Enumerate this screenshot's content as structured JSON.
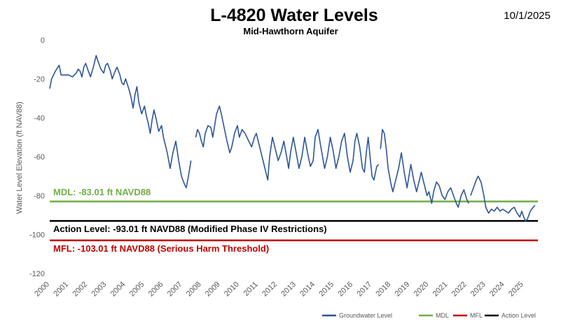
{
  "chart_data": {
    "type": "line",
    "title": "L-4820 Water Levels",
    "subtitle": "Mid-Hawthorn Aquifer",
    "date": "10/1/2025",
    "ylabel": "Water Level Elevation (ft NAV88)",
    "xlabel": "",
    "ylim": [
      -120,
      0
    ],
    "yticks": [
      0,
      -20,
      -40,
      -60,
      -80,
      -100,
      -120
    ],
    "xlim": [
      2000,
      2025.75
    ],
    "xticks": [
      "2000",
      "2001",
      "2002",
      "2003",
      "2004",
      "2005",
      "2006",
      "2007",
      "2008",
      "2009",
      "2010",
      "2011",
      "2012",
      "2013",
      "2014",
      "2015",
      "2016",
      "2017",
      "2018",
      "2019",
      "2020",
      "2021",
      "2022",
      "2023",
      "2024",
      "2025"
    ],
    "grid": false,
    "legend_position": "bottom-right",
    "reference_lines": [
      {
        "name": "MDL",
        "value": -83.01,
        "color": "#70ad47",
        "label": "MDL: -83.01 ft NAVD88"
      },
      {
        "name": "Action Level",
        "value": -93.01,
        "color": "#000000",
        "label": "Action Level: -93.01 ft NAVD88 (Modified Phase IV Restrictions)"
      },
      {
        "name": "MFL",
        "value": -103.01,
        "color": "#c00000",
        "label": "MFL: -103.01 ft NAVD88 (Serious Harm Threshold)"
      }
    ],
    "series": [
      {
        "name": "Groundwater Level",
        "color": "#2f5597",
        "segments": [
          [
            [
              2000.0,
              -25
            ],
            [
              2000.1,
              -20
            ],
            [
              2000.3,
              -16
            ],
            [
              2000.5,
              -13
            ],
            [
              2000.6,
              -18
            ],
            [
              2000.8,
              -18
            ],
            [
              2001.0,
              -18
            ],
            [
              2001.2,
              -19
            ],
            [
              2001.4,
              -17
            ],
            [
              2001.5,
              -15
            ],
            [
              2001.6,
              -16
            ],
            [
              2001.7,
              -19
            ],
            [
              2001.8,
              -14
            ],
            [
              2001.9,
              -12
            ],
            [
              2002.0,
              -15
            ],
            [
              2002.15,
              -19
            ],
            [
              2002.3,
              -14
            ],
            [
              2002.45,
              -8
            ],
            [
              2002.55,
              -11
            ],
            [
              2002.7,
              -15
            ],
            [
              2002.85,
              -17
            ],
            [
              2002.95,
              -13
            ],
            [
              2003.05,
              -12
            ],
            [
              2003.2,
              -16
            ],
            [
              2003.3,
              -20
            ],
            [
              2003.45,
              -16
            ],
            [
              2003.55,
              -14
            ],
            [
              2003.7,
              -18
            ],
            [
              2003.8,
              -22
            ],
            [
              2003.9,
              -23
            ],
            [
              2004.0,
              -20
            ],
            [
              2004.1,
              -23
            ],
            [
              2004.2,
              -26
            ],
            [
              2004.3,
              -30
            ],
            [
              2004.4,
              -35
            ],
            [
              2004.5,
              -28
            ],
            [
              2004.6,
              -24
            ],
            [
              2004.7,
              -32
            ],
            [
              2004.85,
              -38
            ],
            [
              2005.0,
              -34
            ],
            [
              2005.1,
              -39
            ],
            [
              2005.2,
              -43
            ],
            [
              2005.3,
              -48
            ],
            [
              2005.4,
              -41
            ],
            [
              2005.5,
              -36
            ],
            [
              2005.6,
              -40
            ],
            [
              2005.75,
              -47
            ],
            [
              2005.9,
              -44
            ],
            [
              2006.0,
              -50
            ],
            [
              2006.2,
              -58
            ],
            [
              2006.35,
              -66
            ],
            [
              2006.5,
              -58
            ],
            [
              2006.65,
              -52
            ],
            [
              2006.8,
              -62
            ],
            [
              2006.95,
              -70
            ],
            [
              2007.1,
              -74
            ],
            [
              2007.2,
              -76
            ],
            [
              2007.3,
              -71
            ],
            [
              2007.45,
              -62
            ]
          ],
          [
            [
              2007.7,
              -50
            ],
            [
              2007.8,
              -46
            ],
            [
              2007.9,
              -48
            ],
            [
              2008.0,
              -52
            ],
            [
              2008.1,
              -55
            ],
            [
              2008.2,
              -48
            ],
            [
              2008.35,
              -44
            ],
            [
              2008.5,
              -45
            ],
            [
              2008.6,
              -50
            ],
            [
              2008.8,
              -38
            ],
            [
              2008.95,
              -34
            ],
            [
              2009.05,
              -38
            ],
            [
              2009.2,
              -45
            ],
            [
              2009.35,
              -52
            ],
            [
              2009.5,
              -58
            ],
            [
              2009.6,
              -55
            ],
            [
              2009.75,
              -48
            ],
            [
              2009.9,
              -44
            ],
            [
              2010.0,
              -50
            ],
            [
              2010.15,
              -46
            ],
            [
              2010.3,
              -48
            ],
            [
              2010.5,
              -52
            ],
            [
              2010.65,
              -55
            ],
            [
              2010.8,
              -50
            ],
            [
              2010.9,
              -48
            ],
            [
              2011.0,
              -52
            ],
            [
              2011.2,
              -60
            ],
            [
              2011.4,
              -68
            ],
            [
              2011.5,
              -72
            ],
            [
              2011.6,
              -60
            ],
            [
              2011.75,
              -50
            ],
            [
              2011.9,
              -56
            ],
            [
              2012.05,
              -62
            ],
            [
              2012.2,
              -58
            ],
            [
              2012.35,
              -52
            ],
            [
              2012.5,
              -60
            ],
            [
              2012.6,
              -66
            ],
            [
              2012.7,
              -58
            ],
            [
              2012.85,
              -50
            ],
            [
              2013.0,
              -58
            ],
            [
              2013.15,
              -66
            ],
            [
              2013.3,
              -60
            ],
            [
              2013.45,
              -50
            ],
            [
              2013.6,
              -58
            ],
            [
              2013.75,
              -65
            ],
            [
              2013.9,
              -62
            ],
            [
              2014.0,
              -50
            ],
            [
              2014.15,
              -46
            ],
            [
              2014.3,
              -55
            ],
            [
              2014.5,
              -66
            ],
            [
              2014.65,
              -60
            ],
            [
              2014.8,
              -50
            ],
            [
              2014.95,
              -57
            ],
            [
              2015.1,
              -66
            ],
            [
              2015.25,
              -60
            ],
            [
              2015.4,
              -52
            ],
            [
              2015.55,
              -48
            ],
            [
              2015.7,
              -60
            ],
            [
              2015.85,
              -68
            ],
            [
              2016.0,
              -62
            ],
            [
              2016.1,
              -52
            ],
            [
              2016.2,
              -48
            ],
            [
              2016.35,
              -55
            ],
            [
              2016.5,
              -66
            ],
            [
              2016.6,
              -68
            ],
            [
              2016.7,
              -58
            ],
            [
              2016.8,
              -50
            ],
            [
              2016.9,
              -60
            ],
            [
              2017.0,
              -70
            ],
            [
              2017.1,
              -72
            ],
            [
              2017.25,
              -65
            ],
            [
              2017.35,
              -64
            ]
          ],
          [
            [
              2017.45,
              -56
            ],
            [
              2017.55,
              -46
            ],
            [
              2017.65,
              -48
            ],
            [
              2017.75,
              -56
            ],
            [
              2017.85,
              -66
            ],
            [
              2018.0,
              -74
            ],
            [
              2018.1,
              -78
            ],
            [
              2018.25,
              -72
            ],
            [
              2018.4,
              -66
            ],
            [
              2018.55,
              -58
            ],
            [
              2018.7,
              -68
            ],
            [
              2018.85,
              -76
            ],
            [
              2018.95,
              -70
            ],
            [
              2019.05,
              -64
            ],
            [
              2019.2,
              -72
            ],
            [
              2019.35,
              -78
            ],
            [
              2019.5,
              -72
            ],
            [
              2019.6,
              -68
            ],
            [
              2019.75,
              -74
            ],
            [
              2019.9,
              -80
            ],
            [
              2020.0,
              -78
            ],
            [
              2020.1,
              -82
            ],
            [
              2020.15,
              -84
            ],
            [
              2020.25,
              -78
            ],
            [
              2020.4,
              -73
            ],
            [
              2020.55,
              -75
            ],
            [
              2020.7,
              -80
            ],
            [
              2020.85,
              -82
            ],
            [
              2021.0,
              -78
            ],
            [
              2021.15,
              -76
            ],
            [
              2021.3,
              -80
            ],
            [
              2021.45,
              -84
            ],
            [
              2021.55,
              -86
            ],
            [
              2021.7,
              -80
            ],
            [
              2021.85,
              -77
            ],
            [
              2022.0,
              -82
            ],
            [
              2022.1,
              -84
            ]
          ],
          [
            [
              2022.2,
              -80
            ],
            [
              2022.35,
              -76
            ],
            [
              2022.5,
              -72
            ],
            [
              2022.6,
              -70
            ],
            [
              2022.75,
              -73
            ],
            [
              2022.9,
              -80
            ],
            [
              2023.0,
              -86
            ],
            [
              2023.15,
              -89
            ],
            [
              2023.3,
              -87
            ],
            [
              2023.45,
              -88
            ],
            [
              2023.6,
              -86
            ],
            [
              2023.75,
              -88
            ],
            [
              2023.9,
              -87
            ],
            [
              2024.05,
              -88
            ],
            [
              2024.2,
              -89
            ],
            [
              2024.35,
              -87
            ],
            [
              2024.5,
              -86
            ],
            [
              2024.65,
              -89
            ],
            [
              2024.8,
              -91
            ],
            [
              2024.9,
              -88
            ],
            [
              2025.0,
              -91
            ],
            [
              2025.1,
              -93
            ],
            [
              2025.2,
              -92
            ],
            [
              2025.35,
              -88
            ],
            [
              2025.5,
              -86
            ],
            [
              2025.6,
              -85
            ]
          ]
        ]
      }
    ],
    "legend": [
      {
        "name": "Groundwater Level",
        "color": "#2f5597"
      },
      {
        "name": "MDL",
        "color": "#70ad47"
      },
      {
        "name": "MFL",
        "color": "#c00000"
      },
      {
        "name": "Action Level",
        "color": "#000000"
      }
    ]
  }
}
